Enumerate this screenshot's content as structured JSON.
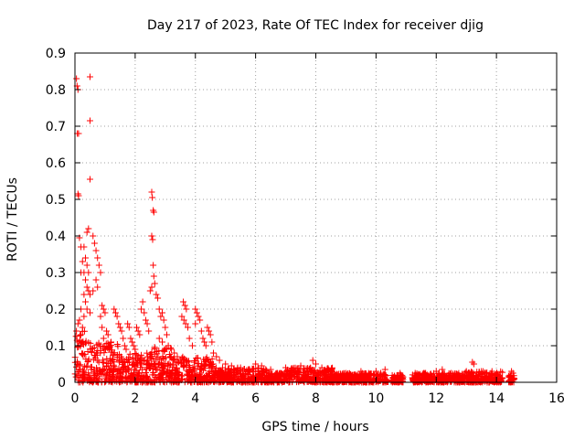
{
  "chart_data": {
    "type": "scatter",
    "title": "Day 217 of 2023, Rate Of TEC Index for receiver djig",
    "xlabel": "GPS time / hours",
    "ylabel": "ROTI / TECUs",
    "xlim": [
      0,
      16
    ],
    "ylim": [
      0,
      0.9
    ],
    "xticks": [
      "0",
      "2",
      "4",
      "6",
      "8",
      "10",
      "12",
      "14",
      "16"
    ],
    "yticks": [
      "0",
      "0.1",
      "0.2",
      "0.3",
      "0.4",
      "0.5",
      "0.6",
      "0.7",
      "0.8",
      "0.9"
    ],
    "grid": true,
    "marker": "plus",
    "color": "#ff0000",
    "series": [
      {
        "name": "ROTI",
        "points": [
          [
            0.05,
            0.83
          ],
          [
            0.07,
            0.81
          ],
          [
            0.1,
            0.8
          ],
          [
            0.08,
            0.68
          ],
          [
            0.12,
            0.68
          ],
          [
            0.5,
            0.835
          ],
          [
            0.5,
            0.715
          ],
          [
            0.5,
            0.555
          ],
          [
            0.1,
            0.515
          ],
          [
            0.12,
            0.51
          ],
          [
            0.45,
            0.42
          ],
          [
            0.4,
            0.41
          ],
          [
            0.15,
            0.395
          ],
          [
            0.2,
            0.37
          ],
          [
            0.3,
            0.37
          ],
          [
            0.35,
            0.34
          ],
          [
            0.25,
            0.33
          ],
          [
            0.4,
            0.32
          ],
          [
            0.45,
            0.3
          ],
          [
            0.3,
            0.3
          ],
          [
            0.2,
            0.3
          ],
          [
            0.35,
            0.28
          ],
          [
            0.4,
            0.26
          ],
          [
            0.45,
            0.25
          ],
          [
            0.5,
            0.24
          ],
          [
            0.3,
            0.24
          ],
          [
            0.35,
            0.22
          ],
          [
            0.4,
            0.2
          ],
          [
            0.2,
            0.2
          ],
          [
            0.5,
            0.19
          ],
          [
            0.3,
            0.18
          ],
          [
            0.15,
            0.17
          ],
          [
            0.1,
            0.16
          ],
          [
            0.25,
            0.15
          ],
          [
            0.05,
            0.14
          ],
          [
            0.6,
            0.4
          ],
          [
            0.65,
            0.38
          ],
          [
            0.7,
            0.36
          ],
          [
            0.75,
            0.34
          ],
          [
            0.8,
            0.32
          ],
          [
            0.85,
            0.3
          ],
          [
            0.7,
            0.28
          ],
          [
            0.75,
            0.26
          ],
          [
            0.6,
            0.25
          ],
          [
            0.9,
            0.21
          ],
          [
            0.95,
            0.2
          ],
          [
            1.0,
            0.19
          ],
          [
            0.85,
            0.18
          ],
          [
            0.9,
            0.15
          ],
          [
            1.05,
            0.14
          ],
          [
            1.1,
            0.13
          ],
          [
            0.95,
            0.12
          ],
          [
            1.2,
            0.11
          ],
          [
            1.3,
            0.2
          ],
          [
            1.35,
            0.19
          ],
          [
            1.4,
            0.18
          ],
          [
            1.45,
            0.16
          ],
          [
            1.5,
            0.15
          ],
          [
            1.55,
            0.14
          ],
          [
            1.6,
            0.12
          ],
          [
            1.65,
            0.1
          ],
          [
            1.7,
            0.09
          ],
          [
            1.75,
            0.16
          ],
          [
            1.8,
            0.15
          ],
          [
            1.85,
            0.12
          ],
          [
            1.9,
            0.11
          ],
          [
            1.95,
            0.1
          ],
          [
            2.0,
            0.09
          ],
          [
            2.05,
            0.15
          ],
          [
            2.1,
            0.14
          ],
          [
            2.15,
            0.13
          ],
          [
            2.2,
            0.2
          ],
          [
            2.25,
            0.22
          ],
          [
            2.3,
            0.19
          ],
          [
            2.35,
            0.17
          ],
          [
            2.4,
            0.16
          ],
          [
            2.45,
            0.14
          ],
          [
            2.55,
            0.52
          ],
          [
            2.57,
            0.505
          ],
          [
            2.6,
            0.47
          ],
          [
            2.62,
            0.465
          ],
          [
            2.55,
            0.4
          ],
          [
            2.58,
            0.39
          ],
          [
            2.6,
            0.32
          ],
          [
            2.62,
            0.29
          ],
          [
            2.65,
            0.27
          ],
          [
            2.55,
            0.26
          ],
          [
            2.5,
            0.25
          ],
          [
            2.7,
            0.24
          ],
          [
            2.75,
            0.23
          ],
          [
            2.8,
            0.2
          ],
          [
            2.85,
            0.18
          ],
          [
            2.9,
            0.19
          ],
          [
            2.95,
            0.17
          ],
          [
            3.0,
            0.15
          ],
          [
            3.05,
            0.13
          ],
          [
            2.8,
            0.12
          ],
          [
            2.9,
            0.11
          ],
          [
            3.1,
            0.1
          ],
          [
            3.2,
            0.09
          ],
          [
            3.3,
            0.08
          ],
          [
            3.4,
            0.07
          ],
          [
            3.5,
            0.06
          ],
          [
            3.55,
            0.18
          ],
          [
            3.6,
            0.22
          ],
          [
            3.65,
            0.21
          ],
          [
            3.7,
            0.2
          ],
          [
            3.62,
            0.17
          ],
          [
            3.68,
            0.16
          ],
          [
            3.75,
            0.15
          ],
          [
            3.8,
            0.12
          ],
          [
            3.9,
            0.1
          ],
          [
            4.0,
            0.2
          ],
          [
            4.05,
            0.19
          ],
          [
            4.1,
            0.18
          ],
          [
            4.15,
            0.17
          ],
          [
            4.0,
            0.16
          ],
          [
            4.2,
            0.14
          ],
          [
            4.25,
            0.12
          ],
          [
            4.3,
            0.11
          ],
          [
            4.35,
            0.1
          ],
          [
            4.4,
            0.15
          ],
          [
            4.45,
            0.14
          ],
          [
            4.5,
            0.13
          ],
          [
            4.55,
            0.11
          ],
          [
            4.6,
            0.08
          ],
          [
            4.7,
            0.07
          ],
          [
            4.8,
            0.06
          ],
          [
            5.0,
            0.05
          ],
          [
            5.2,
            0.045
          ],
          [
            5.5,
            0.04
          ],
          [
            5.8,
            0.035
          ],
          [
            6.0,
            0.05
          ],
          [
            6.2,
            0.045
          ],
          [
            6.5,
            0.035
          ],
          [
            7.0,
            0.04
          ],
          [
            7.5,
            0.045
          ],
          [
            7.9,
            0.06
          ],
          [
            8.0,
            0.05
          ],
          [
            8.2,
            0.04
          ],
          [
            8.5,
            0.03
          ],
          [
            9.0,
            0.025
          ],
          [
            9.5,
            0.03
          ],
          [
            10.0,
            0.03
          ],
          [
            10.3,
            0.035
          ],
          [
            10.8,
            0.025
          ],
          [
            11.3,
            0.025
          ],
          [
            11.6,
            0.025
          ],
          [
            12.0,
            0.03
          ],
          [
            12.2,
            0.035
          ],
          [
            12.5,
            0.025
          ],
          [
            13.0,
            0.03
          ],
          [
            13.2,
            0.055
          ],
          [
            13.25,
            0.05
          ],
          [
            13.5,
            0.03
          ],
          [
            14.0,
            0.02
          ],
          [
            14.5,
            0.03
          ],
          [
            14.55,
            0.025
          ]
        ]
      }
    ],
    "dense_bands": [
      {
        "x_from": 0.0,
        "x_to": 0.4,
        "y_min": 0.0,
        "y_max": 0.14
      },
      {
        "x_from": 0.4,
        "x_to": 1.5,
        "y_min": 0.0,
        "y_max": 0.11
      },
      {
        "x_from": 1.5,
        "x_to": 2.5,
        "y_min": 0.0,
        "y_max": 0.08
      },
      {
        "x_from": 2.5,
        "x_to": 3.2,
        "y_min": 0.0,
        "y_max": 0.1
      },
      {
        "x_from": 3.2,
        "x_to": 4.6,
        "y_min": 0.0,
        "y_max": 0.07
      },
      {
        "x_from": 4.6,
        "x_to": 6.4,
        "y_min": 0.0,
        "y_max": 0.04
      },
      {
        "x_from": 6.4,
        "x_to": 7.0,
        "y_min": 0.0,
        "y_max": 0.025
      },
      {
        "x_from": 7.0,
        "x_to": 8.6,
        "y_min": 0.0,
        "y_max": 0.04
      },
      {
        "x_from": 8.6,
        "x_to": 10.4,
        "y_min": 0.0,
        "y_max": 0.025
      },
      {
        "x_from": 10.5,
        "x_to": 10.9,
        "y_min": 0.0,
        "y_max": 0.02
      },
      {
        "x_from": 11.2,
        "x_to": 12.9,
        "y_min": 0.0,
        "y_max": 0.025
      },
      {
        "x_from": 12.9,
        "x_to": 14.2,
        "y_min": 0.0,
        "y_max": 0.03
      },
      {
        "x_from": 14.4,
        "x_to": 14.6,
        "y_min": 0.0,
        "y_max": 0.02
      }
    ]
  }
}
